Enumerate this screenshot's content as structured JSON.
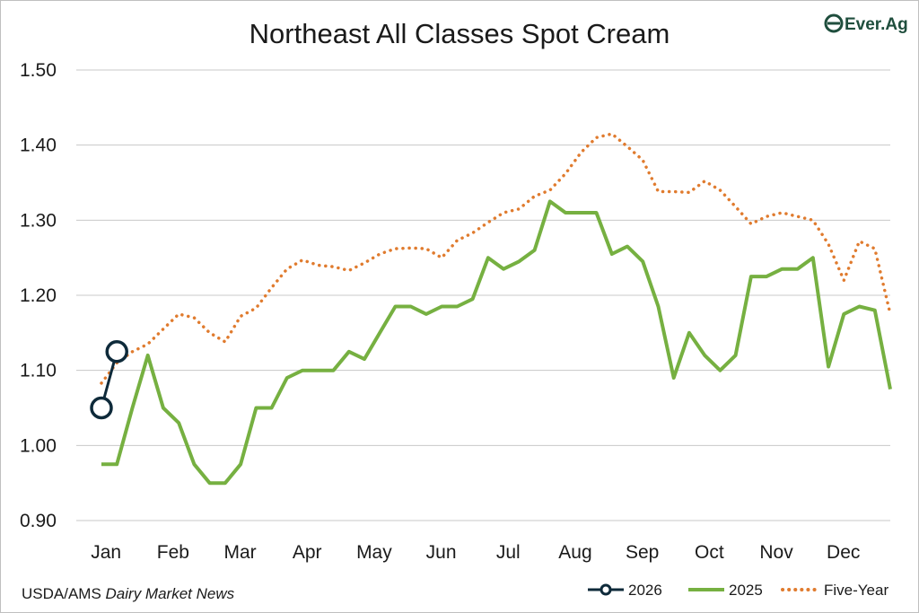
{
  "colors": {
    "s2026": "#0e2a3a",
    "s2025": "#76b041",
    "five_year": "#e07b2e",
    "grid": "#c8c8c8",
    "logo": "#1f4e3d"
  },
  "logo": {
    "text": "Ever.Ag"
  },
  "source": {
    "prefix": "USDA/AMS ",
    "italic": "Dairy Market News"
  },
  "chart_data": {
    "type": "line",
    "title": "Northeast All Classes Spot Cream",
    "xlabel": "",
    "ylabel": "",
    "ylim": [
      0.9,
      1.5
    ],
    "grid": true,
    "legend_position": "bottom-right",
    "y_ticks": [
      "0.90",
      "1.00",
      "1.10",
      "1.20",
      "1.30",
      "1.40",
      "1.50"
    ],
    "months": [
      "Jan",
      "Feb",
      "Mar",
      "Apr",
      "May",
      "Jun",
      "Jul",
      "Aug",
      "Sep",
      "Oct",
      "Nov",
      "Dec"
    ],
    "x_unit": "week of year",
    "series": [
      {
        "name": "Five-Year",
        "style": "dotted",
        "x": [
          1,
          2,
          3,
          4,
          5,
          6,
          7,
          8,
          9,
          10,
          11,
          12,
          13,
          14,
          15,
          16,
          17,
          18,
          19,
          20,
          21,
          22,
          23,
          24,
          25,
          26,
          27,
          28,
          29,
          30,
          31,
          32,
          33,
          34,
          35,
          36,
          37,
          38,
          39,
          40,
          41,
          42,
          43,
          44,
          45,
          46,
          47,
          48,
          49,
          50,
          51,
          52
        ],
        "values": [
          1.083,
          1.11,
          1.125,
          1.135,
          1.155,
          1.175,
          1.17,
          1.15,
          1.138,
          1.172,
          1.183,
          1.21,
          1.235,
          1.247,
          1.24,
          1.238,
          1.233,
          1.243,
          1.255,
          1.262,
          1.263,
          1.262,
          1.25,
          1.273,
          1.283,
          1.297,
          1.31,
          1.315,
          1.332,
          1.34,
          1.362,
          1.39,
          1.41,
          1.415,
          1.398,
          1.38,
          1.338,
          1.338,
          1.337,
          1.352,
          1.34,
          1.318,
          1.295,
          1.305,
          1.31,
          1.305,
          1.3,
          1.268,
          1.22,
          1.272,
          1.262,
          1.175
        ]
      },
      {
        "name": "2025",
        "style": "solid",
        "x": [
          1,
          2,
          3,
          4,
          5,
          6,
          7,
          8,
          9,
          10,
          11,
          12,
          13,
          14,
          15,
          16,
          17,
          18,
          19,
          20,
          21,
          22,
          23,
          24,
          25,
          26,
          27,
          28,
          29,
          30,
          31,
          32,
          33,
          34,
          35,
          36,
          37,
          38,
          39,
          40,
          41,
          42,
          43,
          44,
          45,
          46,
          47,
          48,
          49,
          50,
          51,
          52
        ],
        "values": [
          0.975,
          0.975,
          1.05,
          1.12,
          1.05,
          1.03,
          0.975,
          0.95,
          0.95,
          0.975,
          1.05,
          1.05,
          1.09,
          1.1,
          1.1,
          1.1,
          1.125,
          1.115,
          1.15,
          1.185,
          1.185,
          1.175,
          1.185,
          1.185,
          1.195,
          1.25,
          1.235,
          1.245,
          1.26,
          1.325,
          1.31,
          1.31,
          1.31,
          1.255,
          1.265,
          1.245,
          1.185,
          1.09,
          1.15,
          1.12,
          1.1,
          1.12,
          1.225,
          1.225,
          1.235,
          1.235,
          1.25,
          1.105,
          1.175,
          1.185,
          1.18,
          1.075
        ]
      },
      {
        "name": "2026",
        "style": "solid-markers",
        "x": [
          1,
          2
        ],
        "values": [
          1.05,
          1.125
        ]
      }
    ]
  }
}
